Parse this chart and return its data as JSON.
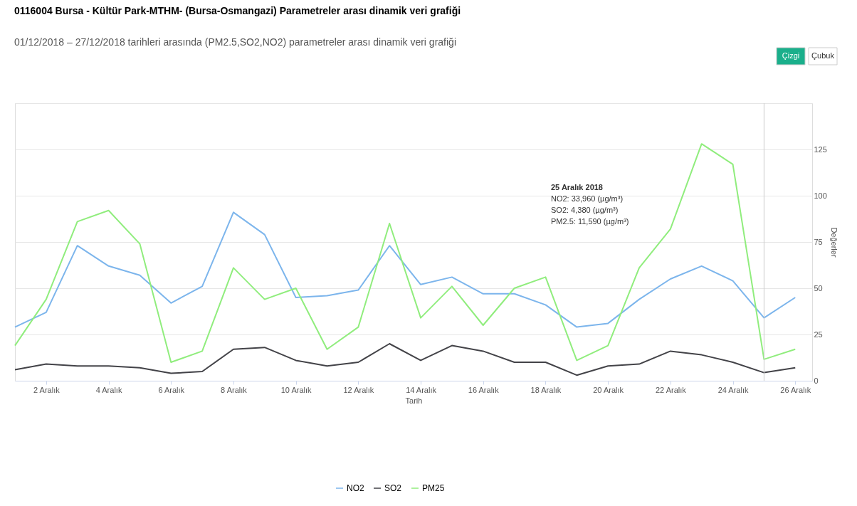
{
  "chart_data": {
    "type": "line",
    "title": "0116004 Bursa - Kültür Park-MTHM- (Bursa-Osmangazi) Parametreler arası dinamik veri grafiği",
    "subtitle": "01/12/2018 – 27/12/2018 tarihleri arasında (PM2.5,SO2,NO2) parametreler arası dinamik veri grafiği",
    "xlabel": "Tarih",
    "ylabel": "Değerler",
    "x": [
      "2018-12-01",
      "2018-12-02",
      "2018-12-03",
      "2018-12-04",
      "2018-12-05",
      "2018-12-06",
      "2018-12-07",
      "2018-12-08",
      "2018-12-09",
      "2018-12-10",
      "2018-12-11",
      "2018-12-12",
      "2018-12-13",
      "2018-12-14",
      "2018-12-15",
      "2018-12-16",
      "2018-12-17",
      "2018-12-18",
      "2018-12-19",
      "2018-12-20",
      "2018-12-21",
      "2018-12-22",
      "2018-12-23",
      "2018-12-24",
      "2018-12-25",
      "2018-12-26"
    ],
    "series": [
      {
        "name": "NO2",
        "color": "#7cb5ec",
        "values": [
          29,
          37,
          73,
          62,
          57,
          42,
          51,
          91,
          79,
          45,
          46,
          49,
          73,
          52,
          56,
          47,
          47,
          41,
          29,
          31,
          44,
          55,
          62,
          54,
          33.96,
          45
        ]
      },
      {
        "name": "SO2",
        "color": "#434348",
        "values": [
          6,
          9,
          8,
          8,
          7,
          4,
          5,
          17,
          18,
          11,
          8,
          10,
          20,
          11,
          19,
          16,
          10,
          10,
          3,
          8,
          9,
          16,
          14,
          10,
          4.38,
          7
        ]
      },
      {
        "name": "PM25",
        "color": "#90ed7d",
        "values": [
          19,
          44,
          86,
          92,
          74,
          10,
          16,
          61,
          44,
          50,
          17,
          29,
          85,
          34,
          51,
          30,
          50,
          56,
          11,
          19,
          61,
          82,
          128,
          117,
          11.59,
          17
        ]
      }
    ],
    "xlim": [
      "2018-12-01",
      "2018-12-26T13:00"
    ],
    "xticks": [
      {
        "value": "2018-12-02",
        "label": "2 Aralık"
      },
      {
        "value": "2018-12-04",
        "label": "4 Aralık"
      },
      {
        "value": "2018-12-06",
        "label": "6 Aralık"
      },
      {
        "value": "2018-12-08",
        "label": "8 Aralık"
      },
      {
        "value": "2018-12-10",
        "label": "10 Aralık"
      },
      {
        "value": "2018-12-12",
        "label": "12 Aralık"
      },
      {
        "value": "2018-12-14",
        "label": "14 Aralık"
      },
      {
        "value": "2018-12-16",
        "label": "16 Aralık"
      },
      {
        "value": "2018-12-18",
        "label": "18 Aralık"
      },
      {
        "value": "2018-12-20",
        "label": "20 Aralık"
      },
      {
        "value": "2018-12-22",
        "label": "22 Aralık"
      },
      {
        "value": "2018-12-24",
        "label": "24 Aralık"
      },
      {
        "value": "2018-12-26",
        "label": "26 Aralık"
      }
    ],
    "ylim": [
      0,
      150
    ],
    "yticks": [
      0,
      25,
      50,
      75,
      100,
      125,
      {
        "value": 150,
        "label": null
      }
    ],
    "grid": "y",
    "legend": "bottom",
    "marker": "none",
    "line_style": "solid",
    "ref_lines": [
      {
        "axis": "x",
        "value": "2018-12-25",
        "color": "#cccccc"
      }
    ],
    "annotations": [
      "25 Aralık 2018",
      "NO2: 33,960 (µg/m³)",
      "SO2: 4,380 (µg/m³)",
      "PM2.5: 11,590 (µg/m³)",
      "Çizgi",
      "Çubuk"
    ]
  }
}
